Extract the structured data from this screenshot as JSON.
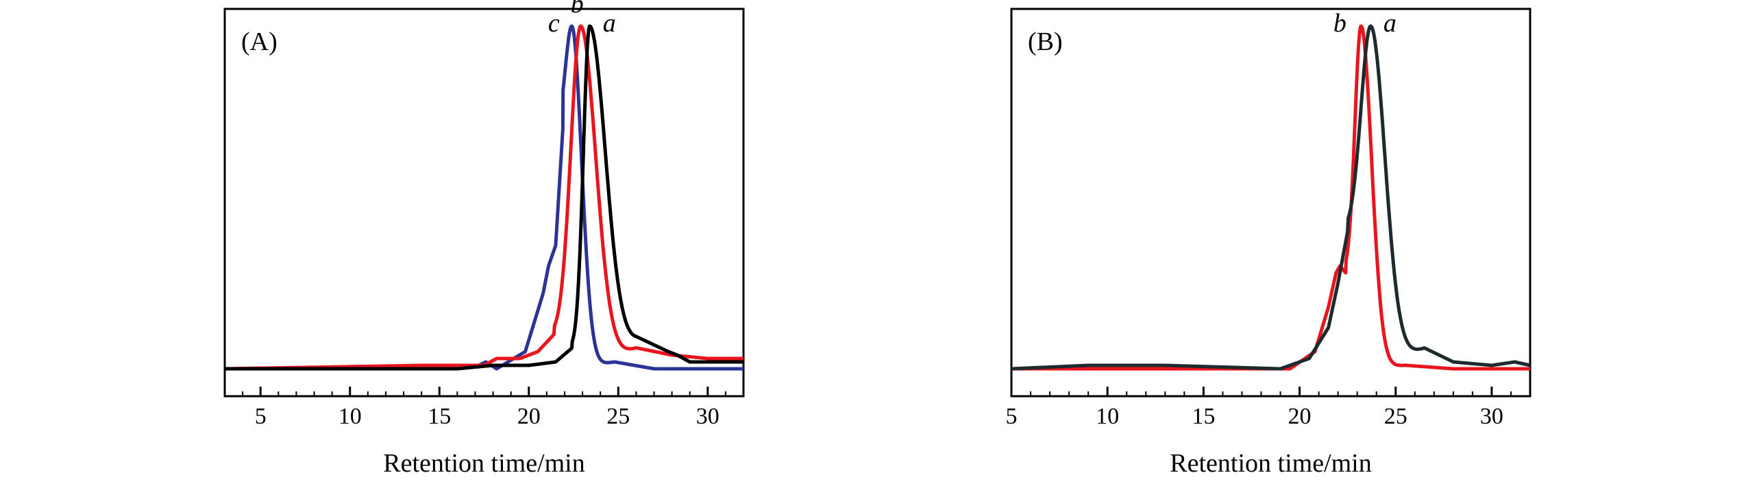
{
  "figure": {
    "panels": [
      {
        "label": "(A)",
        "xlabel": "Retention time/min"
      },
      {
        "label": "(B)",
        "xlabel": "Retention time/min"
      }
    ]
  },
  "chart_data": [
    {
      "type": "line",
      "panel_label": "(A)",
      "xlabel": "Retention time/min",
      "ylabel": "",
      "xlim": [
        3,
        32
      ],
      "ylim": [
        -0.08,
        1.05
      ],
      "xticks": [
        5,
        10,
        15,
        20,
        25,
        30
      ],
      "y_tick_labels_shown": false,
      "grid": false,
      "legend": "none (curves labeled directly)",
      "series": [
        {
          "name": "a",
          "color": "#000000",
          "baseline_points": [
            [
              3,
              0.0
            ],
            [
              16,
              0.0
            ],
            [
              18,
              0.01
            ],
            [
              20,
              0.01
            ],
            [
              21.5,
              0.02
            ],
            [
              22.4,
              0.06
            ]
          ],
          "peak": {
            "center": 23.4,
            "height": 1.0,
            "width_left": 0.35,
            "width_right": 0.9
          },
          "tail": [
            [
              26,
              0.08
            ],
            [
              27.8,
              0.05
            ],
            [
              28.3,
              0.04
            ],
            [
              29,
              0.02
            ],
            [
              31,
              0.02
            ],
            [
              32,
              0.02
            ]
          ],
          "label_text": "a"
        },
        {
          "name": "b",
          "color": "#e8141e",
          "baseline_points": [
            [
              3,
              0.0
            ],
            [
              14,
              0.01
            ],
            [
              17.5,
              0.01
            ],
            [
              18.2,
              0.03
            ],
            [
              19.5,
              0.03
            ],
            [
              20.5,
              0.05
            ],
            [
              21.4,
              0.1
            ]
          ],
          "peak": {
            "center": 22.9,
            "height": 1.0,
            "width_left": 0.55,
            "width_right": 0.85
          },
          "tail": [
            [
              26,
              0.06
            ],
            [
              28,
              0.04
            ],
            [
              30,
              0.03
            ],
            [
              32,
              0.03
            ]
          ],
          "label_text": "b"
        },
        {
          "name": "c",
          "color": "#2b3494",
          "baseline_points": [
            [
              3,
              0.0
            ],
            [
              15,
              0.0
            ],
            [
              17.2,
              0.01
            ],
            [
              17.6,
              0.02
            ],
            [
              18.2,
              0.0
            ],
            [
              19.8,
              0.05
            ],
            [
              20.8,
              0.22
            ],
            [
              21.1,
              0.3
            ],
            [
              21.5,
              0.36
            ],
            [
              21.9,
              0.7
            ]
          ],
          "peak": {
            "center": 22.4,
            "height": 1.0,
            "width_left": 0.35,
            "width_right": 0.55
          },
          "tail": [
            [
              24.8,
              0.02
            ],
            [
              27,
              0.0
            ],
            [
              30,
              0.0
            ],
            [
              32,
              0.0
            ]
          ],
          "label_text": "c"
        }
      ]
    },
    {
      "type": "line",
      "panel_label": "(B)",
      "xlabel": "Retention time/min",
      "ylabel": "",
      "xlim": [
        5,
        32
      ],
      "ylim": [
        -0.08,
        1.05
      ],
      "xticks": [
        5,
        10,
        15,
        20,
        25,
        30
      ],
      "y_tick_labels_shown": false,
      "grid": false,
      "legend": "none (curves labeled directly)",
      "series": [
        {
          "name": "a",
          "color": "#1f2a2e",
          "baseline_points": [
            [
              5,
              0.0
            ],
            [
              9,
              0.01
            ],
            [
              13,
              0.01
            ],
            [
              19,
              0.0
            ],
            [
              20.5,
              0.03
            ],
            [
              21.5,
              0.12
            ],
            [
              22.0,
              0.25
            ],
            [
              22.5,
              0.4
            ]
          ],
          "peak": {
            "center": 23.7,
            "height": 1.0,
            "width_left": 0.5,
            "width_right": 0.75
          },
          "tail": [
            [
              26.5,
              0.06
            ],
            [
              28,
              0.02
            ],
            [
              30,
              0.01
            ],
            [
              31.2,
              0.02
            ],
            [
              32,
              0.01
            ]
          ],
          "label_text": "a"
        },
        {
          "name": "b",
          "color": "#e8141e",
          "baseline_points": [
            [
              5,
              0.0
            ],
            [
              15,
              0.0
            ],
            [
              19.5,
              0.0
            ],
            [
              20.8,
              0.05
            ],
            [
              21.5,
              0.18
            ],
            [
              21.9,
              0.28
            ],
            [
              22.1,
              0.3
            ],
            [
              22.4,
              0.28
            ]
          ],
          "peak": {
            "center": 23.2,
            "height": 1.0,
            "width_left": 0.32,
            "width_right": 0.55
          },
          "tail": [
            [
              25.5,
              0.01
            ],
            [
              28,
              0.0
            ],
            [
              32,
              0.0
            ]
          ],
          "label_text": "b"
        }
      ]
    }
  ]
}
